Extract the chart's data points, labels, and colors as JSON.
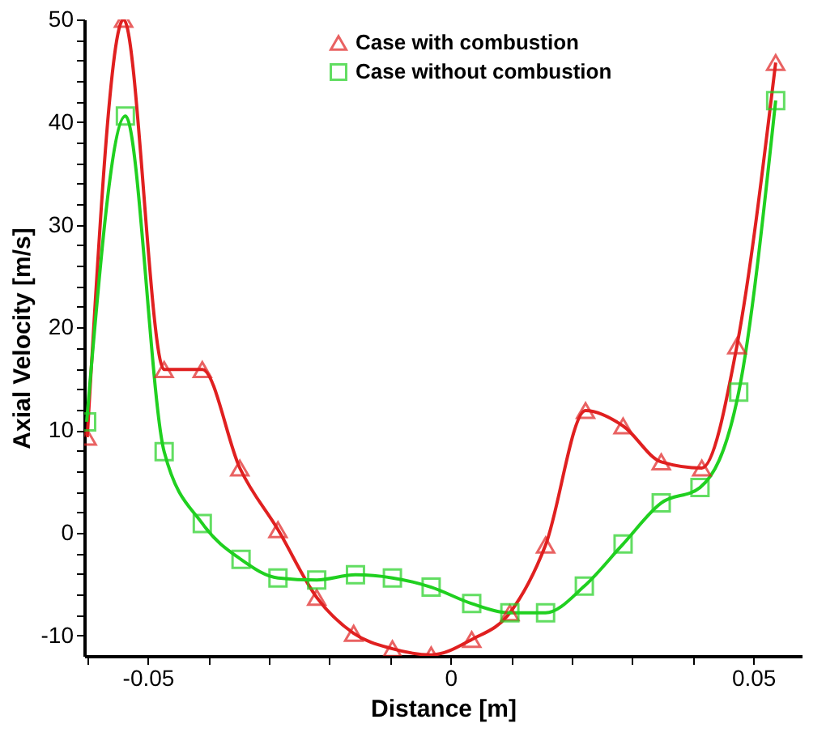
{
  "chart_data": {
    "type": "line",
    "xlabel": "Distance [m]",
    "ylabel": "Axial Velocity [m/s]",
    "xlim": [
      -0.0605,
      0.058
    ],
    "ylim": [
      -12,
      50
    ],
    "xticks": [
      {
        "value": -0.06,
        "label": null
      },
      -0.05,
      {
        "value": -0.04,
        "label": null
      },
      {
        "value": -0.03,
        "label": null
      },
      {
        "value": -0.02,
        "label": null
      },
      {
        "value": -0.01,
        "label": null
      },
      0,
      {
        "value": 0.01,
        "label": null
      },
      {
        "value": 0.02,
        "label": null
      },
      {
        "value": 0.03,
        "label": null
      },
      {
        "value": 0.04,
        "label": null
      },
      0.05
    ],
    "yticks": [
      -10,
      {
        "value": -8,
        "label": null
      },
      {
        "value": -6,
        "label": null
      },
      {
        "value": -4,
        "label": null
      },
      {
        "value": -2,
        "label": null
      },
      0,
      {
        "value": 2,
        "label": null
      },
      {
        "value": 4,
        "label": null
      },
      {
        "value": 6,
        "label": null
      },
      {
        "value": 8,
        "label": null
      },
      10,
      {
        "value": 12,
        "label": null
      },
      {
        "value": 14,
        "label": null
      },
      {
        "value": 16,
        "label": null
      },
      {
        "value": 18,
        "label": null
      },
      20,
      {
        "value": 22,
        "label": null
      },
      {
        "value": 24,
        "label": null
      },
      {
        "value": 26,
        "label": null
      },
      {
        "value": 28,
        "label": null
      },
      30,
      {
        "value": 32,
        "label": null
      },
      {
        "value": 34,
        "label": null
      },
      {
        "value": 36,
        "label": null
      },
      {
        "value": 38,
        "label": null
      },
      40,
      {
        "value": 42,
        "label": null
      },
      {
        "value": 44,
        "label": null
      },
      {
        "value": 46,
        "label": null
      },
      {
        "value": 48,
        "label": null
      },
      50
    ],
    "grid": false,
    "legend": "top",
    "line_style": "solid",
    "series": [
      {
        "name": "Case with combustion",
        "color": "#e02020",
        "marker": "triangle",
        "x": [
          -0.06,
          -0.054,
          -0.0473,
          -0.041,
          -0.0348,
          -0.0285,
          -0.0221,
          -0.016,
          -0.0096,
          -0.0032,
          0.0035,
          0.0098,
          0.0157,
          0.0223,
          0.0285,
          0.0348,
          0.0415,
          0.0473,
          0.0537
        ],
        "values": [
          9.3,
          50,
          15.9,
          15.9,
          6.3,
          0.3,
          -6.3,
          -9.8,
          -11.3,
          -11.9,
          -10.4,
          -7.8,
          -1.2,
          11.9,
          10.4,
          6.9,
          6.3,
          18.2,
          45.8
        ]
      },
      {
        "name": "Case without combustion",
        "color": "#20d020",
        "marker": "square",
        "x": [
          -0.0601,
          -0.0537,
          -0.0473,
          -0.041,
          -0.0346,
          -0.0285,
          -0.0221,
          -0.0157,
          -0.0096,
          -0.0032,
          0.0035,
          0.0098,
          0.0157,
          0.0221,
          0.0285,
          0.0348,
          0.0412,
          0.0476,
          0.0537
        ],
        "values": [
          10.8,
          40.6,
          7.9,
          0.9,
          -2.6,
          -4.4,
          -4.6,
          -4.1,
          -4.4,
          -5.3,
          -6.9,
          -7.8,
          -7.8,
          -5.2,
          -1.1,
          2.9,
          4.4,
          13.7,
          42.1
        ]
      }
    ]
  }
}
